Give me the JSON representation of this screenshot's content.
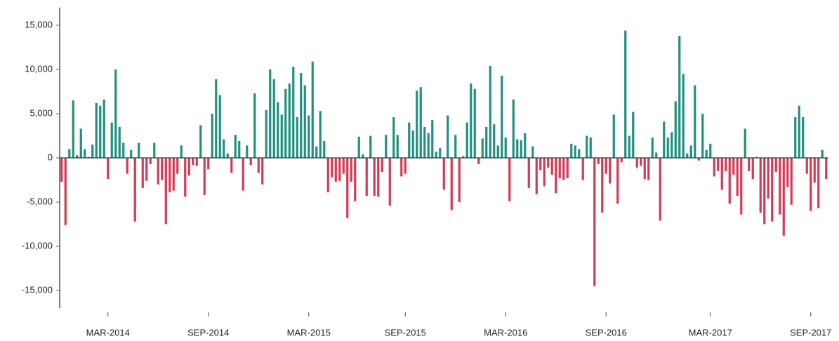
{
  "chart_data": {
    "type": "bar",
    "categories": [
      null,
      null,
      null,
      null,
      null,
      null,
      null,
      null,
      null,
      null,
      null,
      null,
      "MAR-2014",
      null,
      null,
      null,
      null,
      null,
      null,
      null,
      null,
      null,
      null,
      null,
      null,
      null,
      null,
      null,
      null,
      null,
      null,
      null,
      null,
      null,
      null,
      null,
      null,
      null,
      "SEP-2014",
      null,
      null,
      null,
      null,
      null,
      null,
      null,
      null,
      null,
      null,
      null,
      null,
      null,
      null,
      null,
      null,
      null,
      null,
      null,
      null,
      null,
      null,
      null,
      null,
      null,
      "MAR-2015",
      null,
      null,
      null,
      null,
      null,
      null,
      null,
      null,
      null,
      null,
      null,
      null,
      null,
      null,
      null,
      null,
      null,
      null,
      null,
      null,
      null,
      null,
      null,
      null,
      "SEP-2015",
      null,
      null,
      null,
      null,
      null,
      null,
      null,
      null,
      null,
      null,
      null,
      null,
      null,
      null,
      null,
      null,
      null,
      null,
      null,
      null,
      null,
      null,
      null,
      null,
      null,
      "MAR-2016",
      null,
      null,
      null,
      null,
      null,
      null,
      null,
      null,
      null,
      null,
      null,
      null,
      null,
      null,
      null,
      null,
      null,
      null,
      null,
      null,
      null,
      null,
      null,
      null,
      null,
      "SEP-2016",
      null,
      null,
      null,
      null,
      null,
      null,
      null,
      null,
      null,
      null,
      null,
      null,
      null,
      null,
      null,
      null,
      null,
      null,
      null,
      null,
      null,
      null,
      null,
      null,
      null,
      null,
      "MAR-2017",
      null,
      null,
      null,
      null,
      null,
      null,
      null,
      null,
      null,
      null,
      null,
      null,
      null,
      null,
      null,
      null,
      null,
      null,
      null,
      null,
      null,
      null,
      null,
      null,
      null,
      "SEP-2017",
      null,
      null,
      null,
      null
    ],
    "values": [
      -2700,
      -7600,
      1000,
      6500,
      300,
      3300,
      1000,
      100,
      1500,
      6200,
      5900,
      6600,
      -2400,
      4000,
      10000,
      3500,
      1700,
      -1800,
      900,
      -7200,
      1700,
      -3400,
      -2600,
      -700,
      1700,
      -3000,
      -2500,
      -7500,
      -3900,
      -3700,
      -1800,
      1400,
      -4400,
      -2000,
      -800,
      -900,
      3700,
      -4200,
      -1300,
      5000,
      8900,
      7100,
      2100,
      500,
      -1700,
      2600,
      1900,
      -3700,
      1400,
      -800,
      7300,
      -1700,
      -3000,
      5400,
      10000,
      8900,
      6300,
      4900,
      7800,
      8400,
      10300,
      4600,
      9600,
      8200,
      4800,
      10900,
      1300,
      5300,
      1900,
      -3900,
      -2200,
      -2700,
      -2600,
      -1800,
      -6800,
      -2700,
      -4900,
      2400,
      400,
      -4300,
      2500,
      -4300,
      -4400,
      -1600,
      2600,
      -5400,
      4600,
      2600,
      -2100,
      -1800,
      4000,
      3100,
      7600,
      8000,
      3500,
      2800,
      4300,
      700,
      1100,
      -3600,
      4800,
      -5900,
      2600,
      -5000,
      200,
      4000,
      8400,
      7800,
      -700,
      2200,
      3500,
      10400,
      3800,
      1400,
      9300,
      2300,
      -4900,
      6600,
      2100,
      2000,
      2800,
      -3400,
      1300,
      -4100,
      -1400,
      -3200,
      -1100,
      -1900,
      -4000,
      -2300,
      -2500,
      -2300,
      1600,
      1400,
      1000,
      -2500,
      2500,
      2300,
      -14500,
      -700,
      -6200,
      -1800,
      -2900,
      4900,
      -5200,
      -500,
      14400,
      2500,
      5200,
      -1100,
      -900,
      -2400,
      -2500,
      2300,
      600,
      -7100,
      4100,
      2300,
      2900,
      6400,
      13800,
      9500,
      500,
      1400,
      8200,
      -300,
      5000,
      900,
      1600,
      -2100,
      -1500,
      -3600,
      -1500,
      -5200,
      -1900,
      -4300,
      -6400,
      3300,
      -1500,
      -2400,
      100,
      -6200,
      -7500,
      -4600,
      -7200,
      -1600,
      -6400,
      -8800,
      -3300,
      -5300,
      4600,
      5900,
      4600,
      -1800,
      -6000,
      -2800,
      -5700,
      900,
      -2400
    ],
    "color": "#1f9180",
    "negative_color": "#d23a55",
    "ylim": [
      -17000,
      17000
    ],
    "yticks": [
      {
        "value": -15000,
        "label": "-15,000"
      },
      {
        "value": -10000,
        "label": "-10,000"
      },
      {
        "value": -5000,
        "label": "-5,000"
      },
      0,
      {
        "value": 5000,
        "label": "5,000"
      },
      {
        "value": 10000,
        "label": "10,000"
      },
      {
        "value": 15000,
        "label": "15,000"
      }
    ],
    "grid": false
  }
}
